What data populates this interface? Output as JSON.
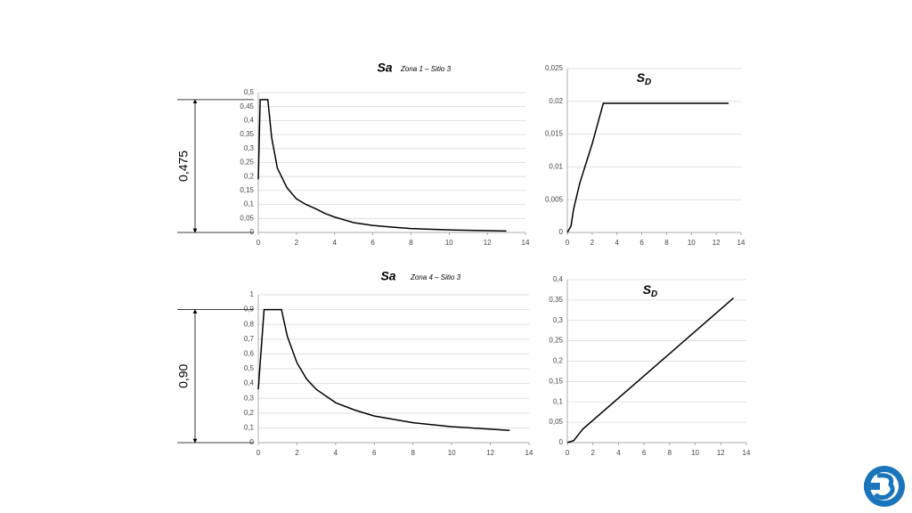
{
  "chart_data": [
    {
      "type": "line",
      "title": "Sa",
      "subtitle": "Zona 1 – Sitio 3",
      "color": "#000000",
      "grid": true,
      "dimension_label": "0,475",
      "x": [
        0,
        0.1,
        0.5,
        0.7,
        1,
        1.5,
        2,
        2.5,
        3,
        3.5,
        4,
        5,
        6,
        7,
        8,
        10,
        13
      ],
      "values": [
        0.19,
        0.475,
        0.475,
        0.34,
        0.23,
        0.16,
        0.12,
        0.1,
        0.085,
        0.068,
        0.055,
        0.035,
        0.025,
        0.019,
        0.014,
        0.009,
        0.005
      ],
      "xlim": [
        0,
        14
      ],
      "xticks": [
        0,
        2,
        4,
        6,
        8,
        10,
        12,
        14
      ],
      "ylim": [
        0,
        0.5
      ],
      "yticks": [
        0,
        {
          "value": 0.05,
          "label": "0,05"
        },
        {
          "value": 0.1,
          "label": "0,1"
        },
        {
          "value": 0.15,
          "label": "0,15"
        },
        {
          "value": 0.2,
          "label": "0,2"
        },
        {
          "value": 0.25,
          "label": "0,25"
        },
        {
          "value": 0.3,
          "label": "0,3"
        },
        {
          "value": 0.35,
          "label": "0,35"
        },
        {
          "value": 0.4,
          "label": "0,4"
        },
        {
          "value": 0.45,
          "label": "0,45"
        },
        {
          "value": 0.5,
          "label": "0,5"
        }
      ]
    },
    {
      "type": "line",
      "title": "S",
      "title_subscript": "D",
      "color": "#000000",
      "grid": true,
      "x": [
        0,
        0.3,
        0.5,
        1,
        2,
        2.9,
        13
      ],
      "values": [
        0,
        0.001,
        0.0035,
        0.0075,
        0.0135,
        0.0197,
        0.0197
      ],
      "xlim": [
        0,
        14
      ],
      "xticks": [
        0,
        2,
        4,
        6,
        8,
        10,
        12,
        14
      ],
      "ylim": [
        0,
        0.025
      ],
      "yticks": [
        0,
        {
          "value": 0.005,
          "label": "0,005"
        },
        {
          "value": 0.01,
          "label": "0,01"
        },
        {
          "value": 0.015,
          "label": "0,015"
        },
        {
          "value": 0.02,
          "label": "0,02"
        },
        {
          "value": 0.025,
          "label": "0,025"
        }
      ]
    },
    {
      "type": "line",
      "title": "Sa",
      "subtitle": "Zona 4 – Sitio 3",
      "color": "#000000",
      "grid": true,
      "dimension_label": "0,90",
      "x": [
        0,
        0.3,
        1.2,
        1.5,
        2,
        2.5,
        3,
        4,
        5,
        6,
        8,
        10,
        13
      ],
      "values": [
        0.36,
        0.9,
        0.9,
        0.72,
        0.54,
        0.43,
        0.36,
        0.27,
        0.22,
        0.18,
        0.135,
        0.108,
        0.083
      ],
      "xlim": [
        0,
        14
      ],
      "xticks": [
        0,
        2,
        4,
        6,
        8,
        10,
        12,
        14
      ],
      "ylim": [
        0,
        1
      ],
      "yticks": [
        0,
        {
          "value": 0.1,
          "label": "0,1"
        },
        {
          "value": 0.2,
          "label": "0,2"
        },
        {
          "value": 0.3,
          "label": "0,3"
        },
        {
          "value": 0.4,
          "label": "0,4"
        },
        {
          "value": 0.5,
          "label": "0,5"
        },
        {
          "value": 0.6,
          "label": "0,6"
        },
        {
          "value": 0.7,
          "label": "0,7"
        },
        {
          "value": 0.8,
          "label": "0,8"
        },
        {
          "value": 0.9,
          "label": "0,9"
        },
        1
      ]
    },
    {
      "type": "line",
      "title": "S",
      "title_subscript": "D",
      "color": "#000000",
      "grid": true,
      "x": [
        0,
        0.5,
        1,
        1.2,
        13
      ],
      "values": [
        0,
        0.005,
        0.025,
        0.033,
        0.355
      ],
      "xlim": [
        0,
        14
      ],
      "xticks": [
        0,
        2,
        4,
        6,
        8,
        10,
        12,
        14
      ],
      "ylim": [
        0,
        0.4
      ],
      "yticks": [
        0,
        {
          "value": 0.05,
          "label": "0,05"
        },
        {
          "value": 0.1,
          "label": "0,1"
        },
        {
          "value": 0.15,
          "label": "0,15"
        },
        {
          "value": 0.2,
          "label": "0,2"
        },
        {
          "value": 0.25,
          "label": "0,25"
        },
        {
          "value": 0.3,
          "label": "0,3"
        },
        {
          "value": 0.35,
          "label": "0,35"
        },
        {
          "value": 0.4,
          "label": "0,4"
        }
      ]
    }
  ]
}
